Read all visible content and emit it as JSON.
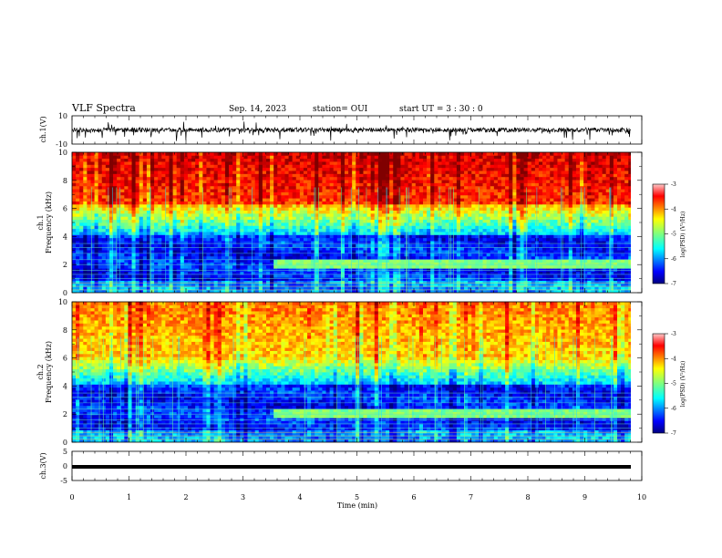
{
  "header": {
    "title": "VLF Spectra",
    "date": "Sep. 14, 2023",
    "station": "station= OUI",
    "start": "start  UT =   3  : 30 : 0"
  },
  "colorbar_label": "log(PSD) (V²/Hz)",
  "chart_data": [
    {
      "type": "line",
      "id": "ch1-waveform",
      "ylabel": "ch.1(V)",
      "ylim": [
        -10,
        10
      ],
      "yticks": [
        10,
        -10
      ],
      "xlim": [
        0,
        9.83
      ],
      "series": [
        {
          "values": [
            -4,
            4
          ]
        }
      ],
      "color": "#000000"
    },
    {
      "type": "heatmap",
      "id": "ch1-spectrogram",
      "ylabel": "ch.1\nFrequency (kHz)",
      "xlim": [
        0,
        9.83
      ],
      "ylim": [
        0,
        10
      ],
      "yticks": [
        0,
        2,
        4,
        6,
        8,
        10
      ],
      "colorbar": {
        "min": -7,
        "max": -3,
        "ticks": [
          -3,
          -4,
          -5,
          -6,
          -7
        ]
      }
    },
    {
      "type": "heatmap",
      "id": "ch2-spectrogram",
      "ylabel": "ch.2\nFrequency (kHz)",
      "xlim": [
        0,
        9.83
      ],
      "ylim": [
        0,
        10
      ],
      "yticks": [
        0,
        2,
        4,
        6,
        8,
        10
      ],
      "colorbar": {
        "min": -7,
        "max": -3,
        "ticks": [
          -3,
          -4,
          -5,
          -6,
          -7
        ]
      }
    },
    {
      "type": "line",
      "id": "ch3-waveform",
      "ylabel": "ch.3(V)",
      "ylim": [
        -5,
        5
      ],
      "yticks": [
        5,
        0,
        -5
      ],
      "xlim": [
        0,
        9.83
      ],
      "series": [
        {
          "values": [
            -0.3,
            0.3
          ]
        }
      ],
      "color": "#000000"
    }
  ],
  "xaxis": {
    "label": "Time (min)",
    "ticks": [
      0,
      1,
      2,
      3,
      4,
      5,
      6,
      7,
      8,
      9,
      10
    ],
    "range": [
      0,
      10
    ]
  }
}
